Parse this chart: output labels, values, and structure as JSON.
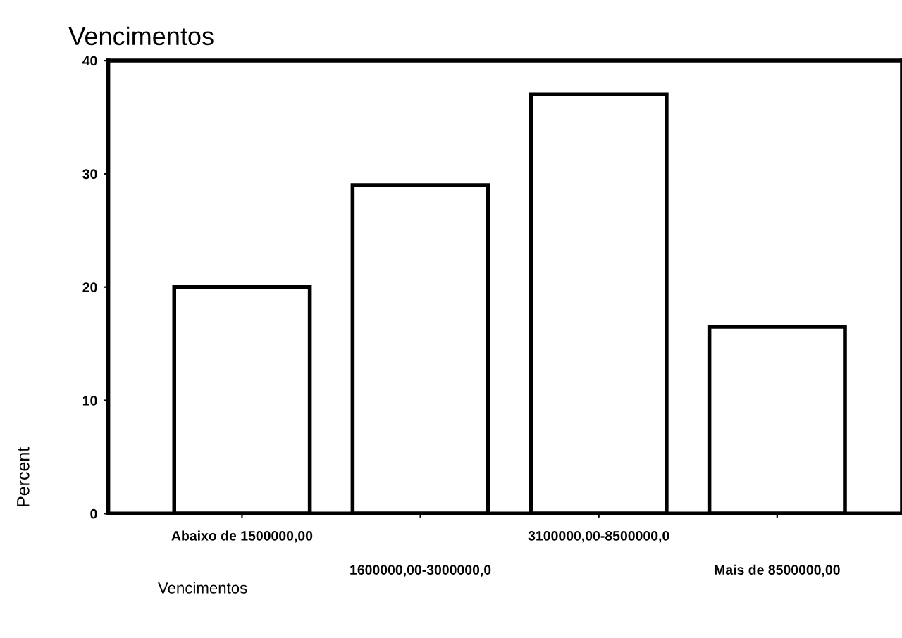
{
  "chart_data": {
    "type": "bar",
    "title": "Vencimentos",
    "xlabel": "Vencimentos",
    "ylabel": "Percent",
    "categories": [
      "Abaixo de 1500000,00",
      "1600000,00-3000000,0",
      "3100000,00-8500000,0",
      "Mais de 8500000,00"
    ],
    "values": [
      20,
      29,
      37,
      16.5
    ],
    "color": "#ffffff",
    "ylim": [
      0,
      40
    ],
    "yticks": [
      0,
      10,
      20,
      30,
      40
    ],
    "grid": false,
    "legend": false
  }
}
